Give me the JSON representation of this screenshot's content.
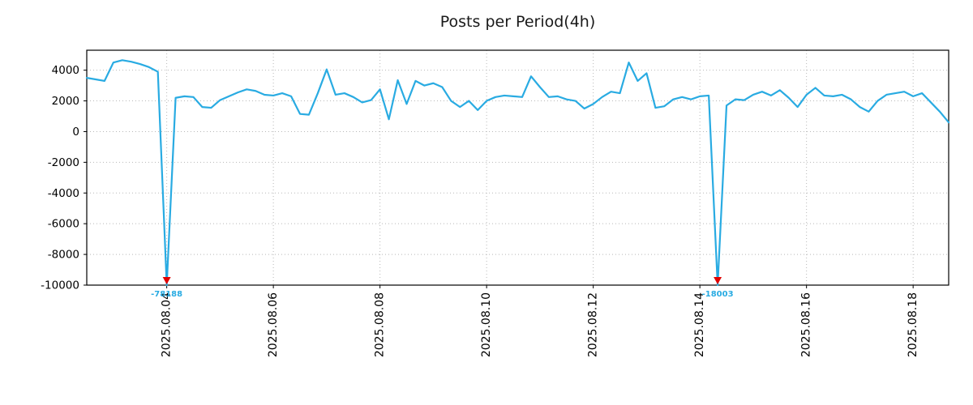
{
  "page": {
    "title": "Posts per Period(4h)"
  },
  "chart_data": {
    "type": "line",
    "title": "Posts per Period(4h)",
    "x_start": "2025.08.02 12:00",
    "interval_hours": 4,
    "xlabel": "",
    "ylabel": "",
    "grid": "on",
    "legend": "none",
    "ylim": [
      -10000,
      5300
    ],
    "clip_min": -10000,
    "y_ticks": [
      4000,
      2000,
      0,
      -2000,
      -4000,
      -6000,
      -8000,
      -10000
    ],
    "x_ticks": [
      {
        "index": 9,
        "label": "2025.08.04"
      },
      {
        "index": 21,
        "label": "2025.08.06"
      },
      {
        "index": 33,
        "label": "2025.08.08"
      },
      {
        "index": 45,
        "label": "2025.08.10"
      },
      {
        "index": 57,
        "label": "2025.08.12"
      },
      {
        "index": 69,
        "label": "2025.08.14"
      },
      {
        "index": 81,
        "label": "2025.08.16"
      },
      {
        "index": 93,
        "label": "2025.08.18"
      }
    ],
    "values": [
      3500,
      3400,
      3300,
      4500,
      4650,
      4550,
      4400,
      4200,
      3900,
      -78188,
      2200,
      2300,
      2250,
      1600,
      1550,
      2050,
      2300,
      2550,
      2750,
      2650,
      2400,
      2350,
      2500,
      2300,
      1150,
      1100,
      2500,
      4050,
      2400,
      2500,
      2250,
      1900,
      2050,
      2750,
      800,
      3350,
      1800,
      3300,
      3000,
      3150,
      2900,
      2000,
      1600,
      2000,
      1400,
      2000,
      2250,
      2350,
      2300,
      2250,
      3600,
      2900,
      2250,
      2300,
      2100,
      2000,
      1500,
      1800,
      2250,
      2600,
      2500,
      4500,
      3300,
      3800,
      1550,
      1650,
      2100,
      2250,
      2100,
      2300,
      2350,
      -18003,
      1700,
      2100,
      2050,
      2400,
      2600,
      2350,
      2700,
      2200,
      1600,
      2400,
      2850,
      2350,
      2300,
      2400,
      2100,
      1600,
      1300,
      2000,
      2400,
      2500,
      2600,
      2300,
      2500,
      1900,
      1300,
      600
    ],
    "annotations": [
      {
        "index": 9,
        "value": -78188,
        "label": "-78188"
      },
      {
        "index": 71,
        "value": -18003,
        "label": "-18003"
      }
    ],
    "colors": {
      "line": "#29abe2",
      "marker": "#e00000",
      "annotation": "#29abe2",
      "grid": "#b8b8b8",
      "axis": "#000000",
      "tick_text": "#000000"
    }
  }
}
